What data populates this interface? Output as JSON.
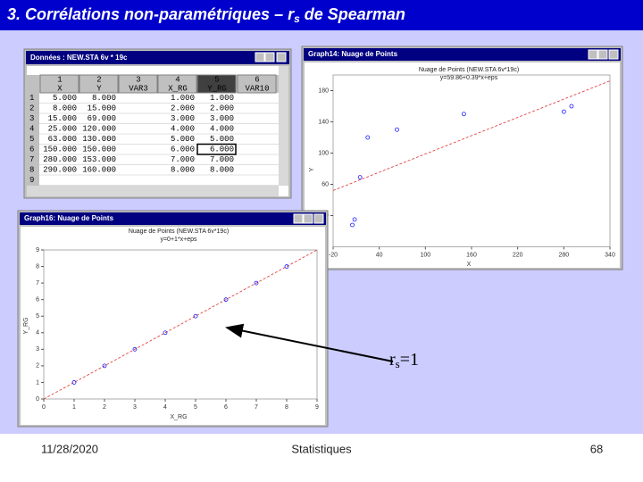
{
  "title": {
    "text": "3. Corrélations non-paramétriques – r",
    "subscript": "s",
    "text_end": " de Spearman"
  },
  "table_window": {
    "title": "Données : NEW.STA 6v * 19c",
    "columns": [
      {
        "number": "1",
        "name": "X"
      },
      {
        "number": "2",
        "name": "Y"
      },
      {
        "number": "3",
        "name": "VAR3"
      },
      {
        "number": "4",
        "name": "X_RG"
      },
      {
        "number": "5",
        "name": "Y_RG"
      },
      {
        "number": "6",
        "name": "VAR10"
      }
    ],
    "rows": [
      {
        "label": "1",
        "cells": [
          "5.000",
          "8.000",
          null,
          "1.000",
          "1.000",
          null
        ]
      },
      {
        "label": "2",
        "cells": [
          "8.000",
          "15.000",
          null,
          "2.000",
          "2.000",
          null
        ]
      },
      {
        "label": "3",
        "cells": [
          "15.000",
          "69.000",
          null,
          "3.000",
          "3.000",
          null
        ]
      },
      {
        "label": "4",
        "cells": [
          "25.000",
          "120.000",
          null,
          "4.000",
          "4.000",
          null
        ]
      },
      {
        "label": "5",
        "cells": [
          "63.000",
          "130.000",
          null,
          "5.000",
          "5.000",
          null
        ]
      },
      {
        "label": "6",
        "cells": [
          "150.000",
          "150.000",
          null,
          "6.000",
          "6.000",
          null
        ]
      },
      {
        "label": "7",
        "cells": [
          "280.000",
          "153.000",
          null,
          "7.000",
          "7.000",
          null
        ]
      },
      {
        "label": "8",
        "cells": [
          "290.000",
          "160.000",
          null,
          "8.000",
          "8.000",
          null
        ]
      },
      {
        "label": "9",
        "cells": [
          null,
          null,
          null,
          null,
          null,
          null
        ]
      }
    ]
  },
  "chart_data": [
    {
      "type": "scatter",
      "window_title": "Graph14: Nuage de Points",
      "title": "Nuage de Points (NEW.STA 6v*19c)",
      "subtitle": "y=59.86+0.39*x+eps",
      "x_label": "X",
      "y_label": "Y",
      "x": [
        5,
        8,
        15,
        25,
        63,
        150,
        280,
        290
      ],
      "values": [
        8,
        15,
        69,
        120,
        130,
        150,
        153,
        160
      ],
      "xlim": [
        -20,
        340
      ],
      "ylim": [
        -20,
        200
      ],
      "xticks": [
        -20,
        40,
        100,
        160,
        220,
        280,
        340
      ],
      "yticks": [
        20,
        60,
        100,
        140,
        180
      ],
      "color": "#1a1aff",
      "fit": {
        "intercept": 59.86,
        "slope": 0.39,
        "color": "#e03030"
      }
    },
    {
      "type": "scatter",
      "window_title": "Graph16: Nuage de Points",
      "title": "Nuage de Points (NEW.STA 6v*19c)",
      "subtitle": "y=0+1*x+eps",
      "x_label": "X_RG",
      "y_label": "Y_RG",
      "x": [
        1,
        2,
        3,
        4,
        5,
        6,
        7,
        8
      ],
      "values": [
        1,
        2,
        3,
        4,
        5,
        6,
        7,
        8
      ],
      "xlim": [
        0,
        9
      ],
      "ylim": [
        0,
        9
      ],
      "xticks": [
        0,
        1,
        2,
        3,
        4,
        5,
        6,
        7,
        8,
        9
      ],
      "yticks": [
        0,
        1,
        2,
        3,
        4,
        5,
        6,
        7,
        8,
        9
      ],
      "color": "#1a1aff",
      "fit": {
        "intercept": 0,
        "slope": 1,
        "color": "#e03030"
      }
    }
  ],
  "annotation": {
    "text": "r",
    "subscript": "s",
    "text_end": "=1"
  },
  "footer": {
    "date": "11/28/2020",
    "center": "Statistiques",
    "page": "68"
  }
}
